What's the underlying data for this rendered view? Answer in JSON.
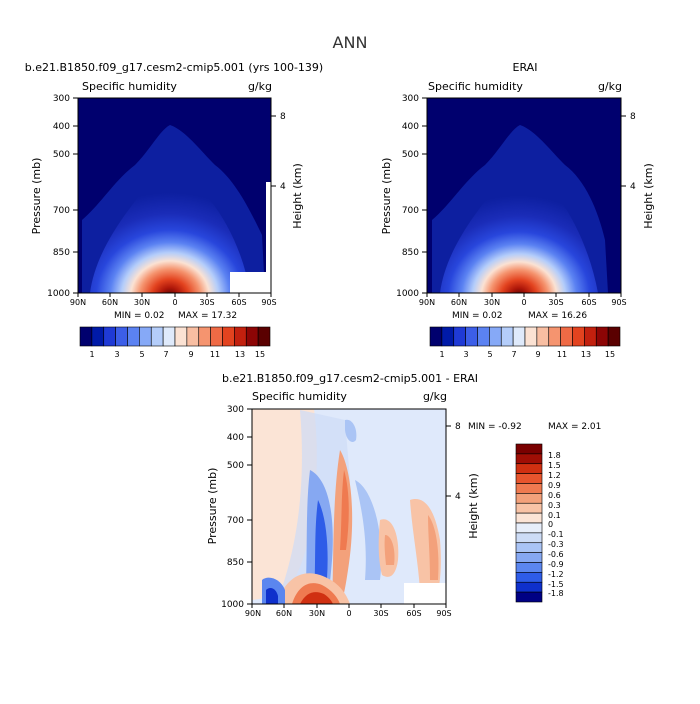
{
  "page": {
    "title": "ANN"
  },
  "colors": {
    "seq": [
      "#00006e",
      "#001aa8",
      "#1f3ad6",
      "#3c5ee8",
      "#5b82f2",
      "#86a9f7",
      "#b4cdfa",
      "#dfeafb",
      "#fbe2d3",
      "#f8bea2",
      "#f5946f",
      "#ef6a45",
      "#e3431f",
      "#c2200e",
      "#8d0505",
      "#5a0000"
    ],
    "div": [
      "#000084",
      "#0f30cc",
      "#2e5ce8",
      "#5b86ef",
      "#86a8f2",
      "#aac4f5",
      "#cddcf6",
      "#e7eefa",
      "#fbe4d6",
      "#f8c3a6",
      "#f3a17b",
      "#ef7a50",
      "#e7552d",
      "#d03011",
      "#a00e05"
    ]
  },
  "chart_data": [
    {
      "type": "heatmap",
      "title": "b.e21.B1850.f09_g17.cesm2-cmip5.001 (yrs 100-139)",
      "subtitle_left": "Specific humidity",
      "subtitle_right": "g/kg",
      "xlabel": "",
      "ylabel": "Pressure (mb)",
      "right_axis_label": "Height (km)",
      "x_ticks": [
        "90N",
        "60N",
        "30N",
        "0",
        "30S",
        "60S",
        "90S"
      ],
      "y_ticks": [
        "300",
        "400",
        "500",
        "700",
        "850",
        "1000"
      ],
      "y_scale": "log",
      "ylim": [
        1000,
        300
      ],
      "right_ticks": [
        "8",
        "4"
      ],
      "stats": {
        "min": 0.02,
        "max": 17.32
      },
      "min_text": "MIN =   0.02",
      "max_text": "MAX =  17.32",
      "colorbar": {
        "orientation": "horizontal",
        "labels": [
          "1",
          "3",
          "5",
          "7",
          "9",
          "11",
          "13",
          "15"
        ]
      }
    },
    {
      "type": "heatmap",
      "title": "ERAI",
      "subtitle_left": "Specific humidity",
      "subtitle_right": "g/kg",
      "xlabel": "",
      "ylabel": "Pressure (mb)",
      "right_axis_label": "Height (km)",
      "x_ticks": [
        "90N",
        "60N",
        "30N",
        "0",
        "30S",
        "60S",
        "90S"
      ],
      "y_ticks": [
        "300",
        "400",
        "500",
        "700",
        "850",
        "1000"
      ],
      "y_scale": "log",
      "ylim": [
        1000,
        300
      ],
      "right_ticks": [
        "8",
        "4"
      ],
      "stats": {
        "min": 0.02,
        "max": 16.26
      },
      "min_text": "MIN =   0.02",
      "max_text": "MAX =  16.26",
      "colorbar": {
        "orientation": "horizontal",
        "labels": [
          "1",
          "3",
          "5",
          "7",
          "9",
          "11",
          "13",
          "15"
        ]
      }
    },
    {
      "type": "heatmap",
      "title": "b.e21.B1850.f09_g17.cesm2-cmip5.001 - ERAI",
      "subtitle_left": "Specific humidity",
      "subtitle_right": "g/kg",
      "xlabel": "",
      "ylabel": "Pressure (mb)",
      "right_axis_label": "Height (km)",
      "x_ticks": [
        "90N",
        "60N",
        "30N",
        "0",
        "30S",
        "60S",
        "90S"
      ],
      "y_ticks": [
        "300",
        "400",
        "500",
        "700",
        "850",
        "1000"
      ],
      "y_scale": "log",
      "ylim": [
        1000,
        300
      ],
      "right_ticks": [
        "8",
        "4"
      ],
      "stats": {
        "min": -0.92,
        "max": 2.01
      },
      "min_text": "MIN =  -0.92",
      "max_text": "MAX =   2.01",
      "colorbar": {
        "orientation": "vertical",
        "labels": [
          "1.8",
          "1.5",
          "1.2",
          "0.9",
          "0.6",
          "0.3",
          "0.1",
          "0",
          "-0.1",
          "-0.3",
          "-0.6",
          "-0.9",
          "-1.2",
          "-1.5",
          "-1.8"
        ]
      }
    }
  ]
}
